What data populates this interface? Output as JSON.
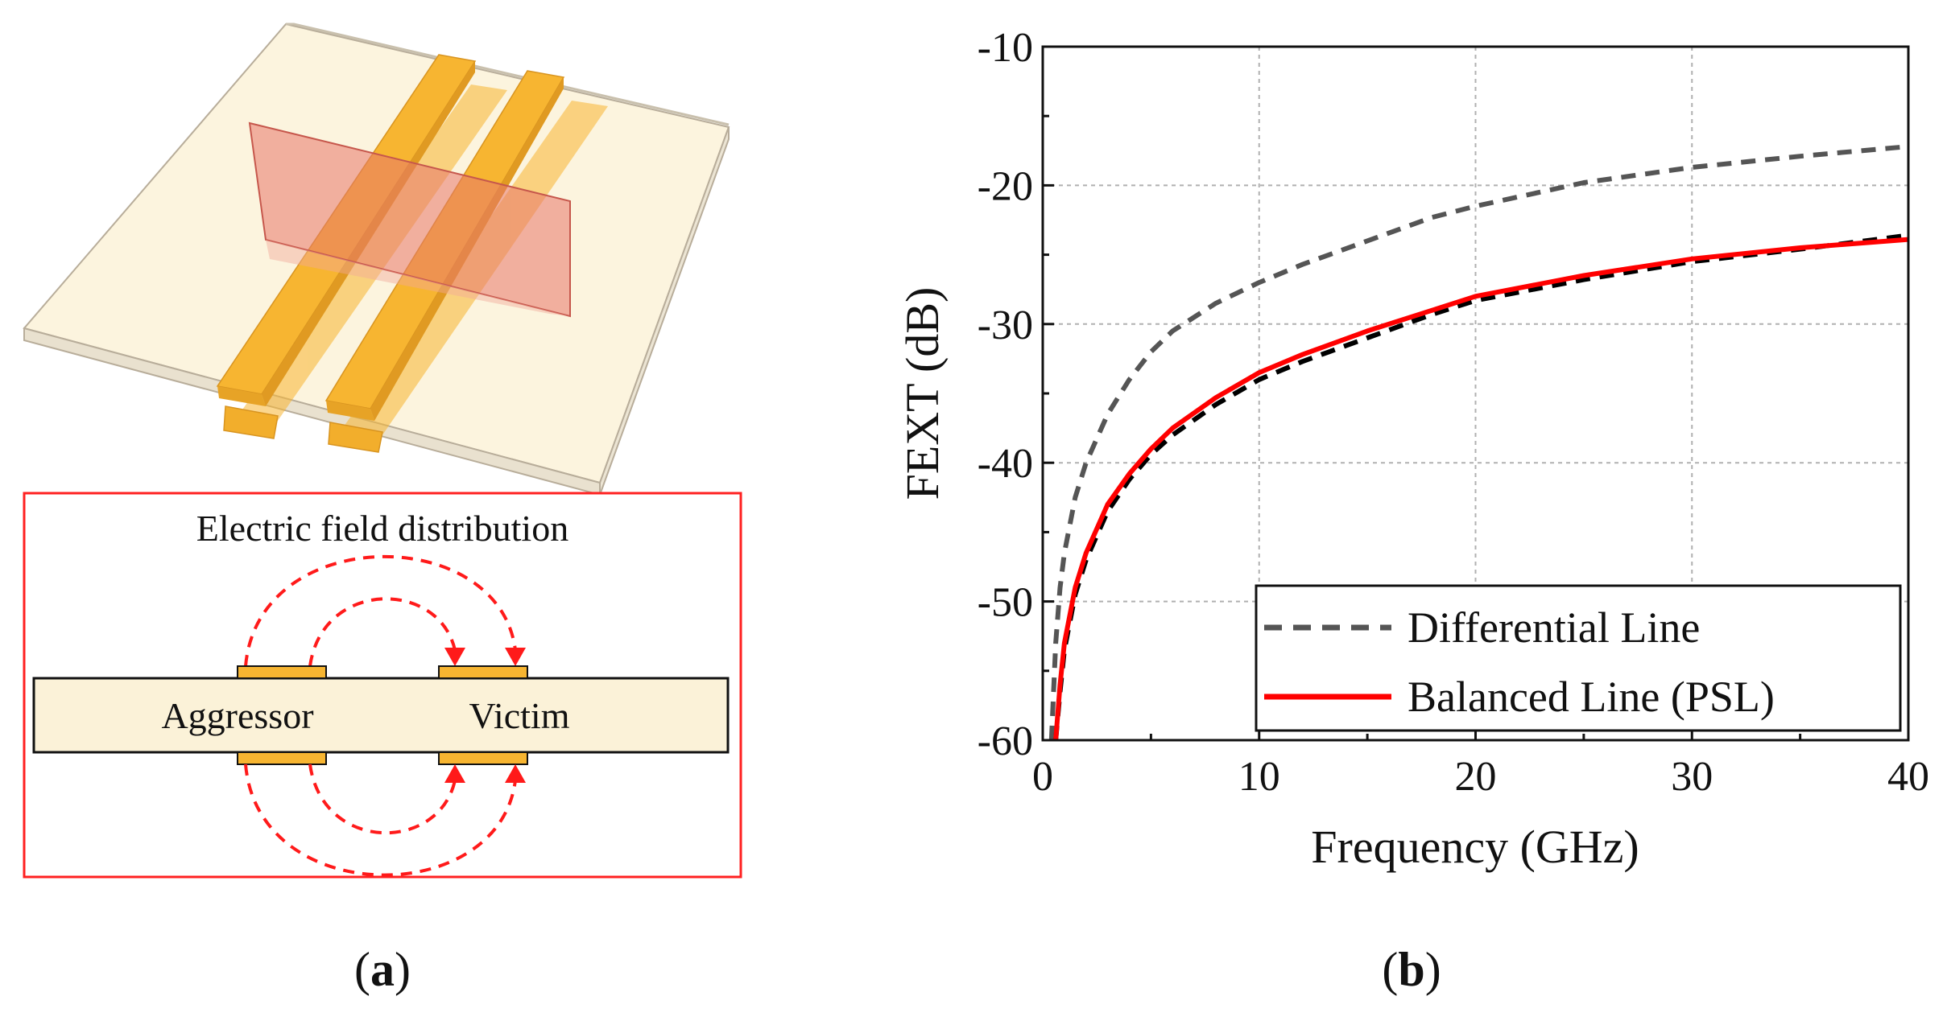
{
  "panel_a": {
    "caption_open": "(",
    "caption_letter": "a",
    "caption_close": ")",
    "field_title": "Electric field distribution",
    "aggressor_label": "Aggressor",
    "victim_label": "Victim",
    "colors": {
      "substrate": "#fbf2d8",
      "trace": "#f7b531",
      "plane": "#e8766a",
      "field": "#ff1a1a",
      "box": "#ff2020"
    }
  },
  "panel_b": {
    "caption_open": "(",
    "caption_letter": "b",
    "caption_close": ")"
  },
  "chart_data": {
    "type": "line",
    "title": "",
    "xlabel": "Frequency (GHz)",
    "ylabel": "FEXT (dB)",
    "xlim": [
      0,
      40
    ],
    "ylim": [
      -60,
      -10
    ],
    "xticks": [
      0,
      10,
      20,
      30,
      40
    ],
    "yticks": [
      -60,
      -50,
      -40,
      -30,
      -20,
      -10
    ],
    "xtick_labels": [
      "0",
      "10",
      "20",
      "30",
      "40"
    ],
    "ytick_labels": [
      "-60",
      "-50",
      "-40",
      "-30",
      "-20",
      "-10"
    ],
    "grid": true,
    "legend_position": "bottom-right",
    "series": [
      {
        "name": "Differential Line",
        "style": "dashed",
        "color": "#555555",
        "x": [
          0.4,
          0.6,
          0.8,
          1,
          1.5,
          2,
          3,
          4,
          5,
          6,
          8,
          10,
          12,
          15,
          18,
          20,
          25,
          30,
          35,
          40
        ],
        "y": [
          -60,
          -53,
          -49,
          -46.5,
          -42.5,
          -40,
          -36.5,
          -34,
          -32,
          -30.5,
          -28.5,
          -27,
          -25.7,
          -24,
          -22.3,
          -21.5,
          -19.8,
          -18.7,
          -17.9,
          -17.2
        ]
      },
      {
        "name": "Balanced Line (PSL)",
        "style": "solid",
        "color": "#ff0000",
        "x": [
          0.6,
          0.8,
          1,
          1.5,
          2,
          3,
          4,
          5,
          6,
          8,
          10,
          12,
          15,
          18,
          20,
          25,
          30,
          35,
          40
        ],
        "y": [
          -60,
          -56,
          -53,
          -49,
          -46.5,
          -43,
          -40.8,
          -39,
          -37.5,
          -35.3,
          -33.5,
          -32.2,
          -30.5,
          -29,
          -28,
          -26.5,
          -25.3,
          -24.5,
          -23.9
        ]
      },
      {
        "name": "",
        "style": "dashed",
        "color": "#000000",
        "x": [
          0.6,
          0.8,
          1,
          1.5,
          2,
          3,
          4,
          5,
          6,
          8,
          10,
          12,
          15,
          18,
          20,
          25,
          30,
          35,
          40
        ],
        "y": [
          -60,
          -56.5,
          -53.5,
          -49.5,
          -47,
          -43.5,
          -41.2,
          -39.4,
          -38,
          -35.8,
          -34,
          -32.7,
          -31,
          -29.3,
          -28.3,
          -26.8,
          -25.5,
          -24.6,
          -23.6
        ]
      }
    ]
  }
}
